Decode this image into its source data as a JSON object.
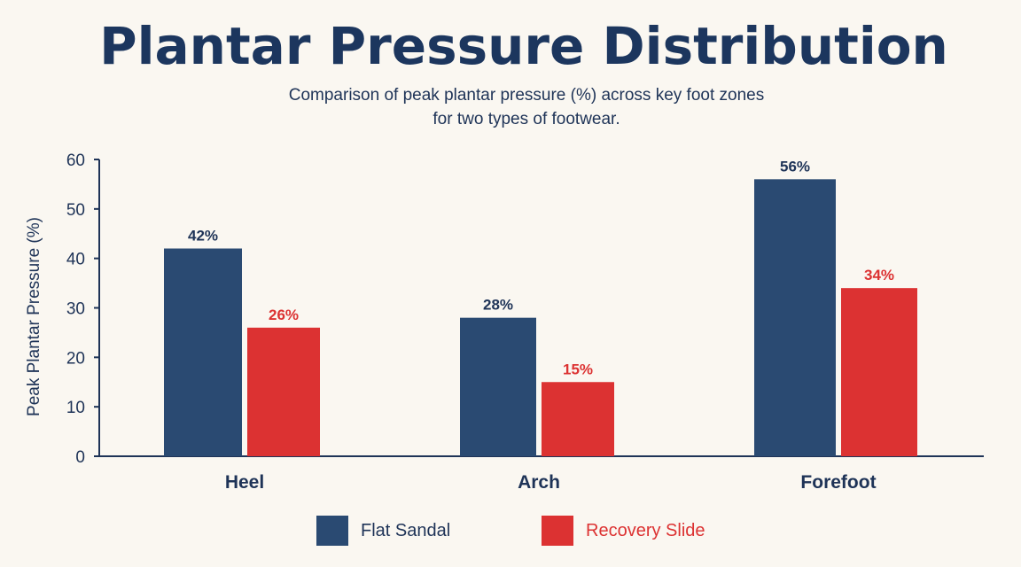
{
  "chart_data": {
    "type": "bar",
    "title": "Plantar Pressure Distribution",
    "subtitle_lines": [
      "Comparison of peak plantar pressure (%) across key foot zones",
      "for two types of footwear."
    ],
    "ylabel": "Peak Plantar Pressure (%)",
    "xlabel": "",
    "ylim": [
      0,
      60
    ],
    "yticks": [
      0,
      10,
      20,
      30,
      40,
      50,
      60
    ],
    "categories": [
      "Heel",
      "Arch",
      "Forefoot"
    ],
    "series": [
      {
        "name": "Flat Sandal",
        "values": [
          42,
          28,
          56
        ],
        "labels": [
          "42%",
          "28%",
          "56%"
        ],
        "color": "#2a4a72"
      },
      {
        "name": "Recovery Slide",
        "values": [
          26,
          15,
          34
        ],
        "labels": [
          "26%",
          "15%",
          "34%"
        ],
        "color": "#dc3232"
      }
    ],
    "grid": false,
    "legend_position": "bottom"
  },
  "colors": {
    "axis": "#1e3357",
    "title": "#1c365e",
    "background": "#faf7f1"
  }
}
